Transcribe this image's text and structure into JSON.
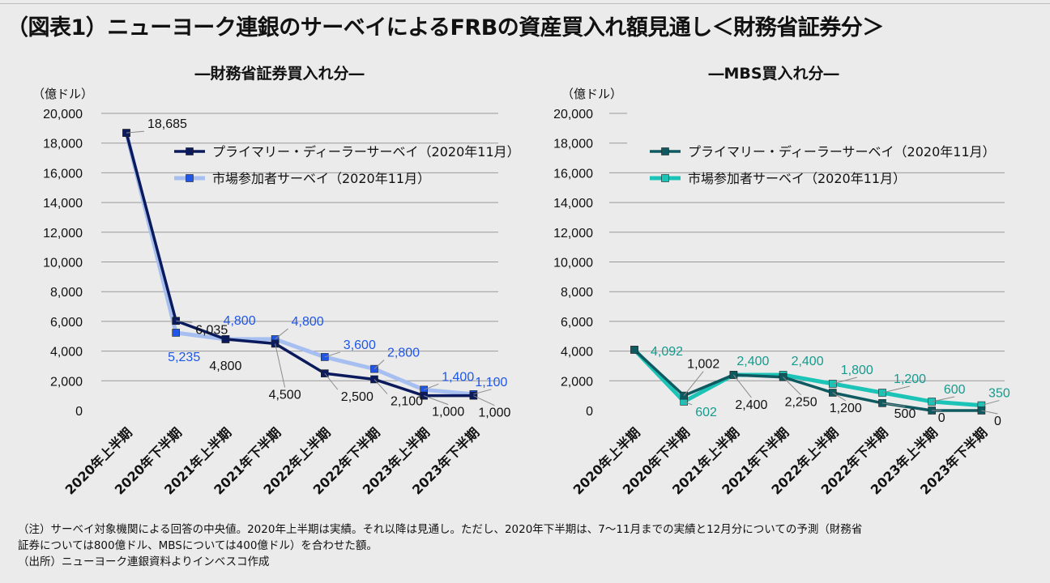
{
  "title": "（図表1）ニューヨーク連銀のサーベイによるFRBの資産買入れ額見通し＜財務省証券分＞",
  "colors": {
    "left_primary": "#0a1a5c",
    "left_market": "#a6bff0",
    "left_marker": "#1f56e8",
    "left_label": "#1f56e8",
    "right_primary": "#0f5a60",
    "right_market": "#1cc4b8",
    "right_label": "#169a8d"
  },
  "chart_data": [
    {
      "type": "line",
      "title": "―財務省証券買入れ分―",
      "ylabel": "（億ドル）",
      "ylim": [
        0,
        20000
      ],
      "yticks": [
        "0",
        "2,000",
        "4,000",
        "6,000",
        "8,000",
        "10,000",
        "12,000",
        "14,000",
        "16,000",
        "18,000",
        "20,000"
      ],
      "categories": [
        "2020年上半期",
        "2020年下半期",
        "2021年上半期",
        "2021年下半期",
        "2022年上半期",
        "2022年下半期",
        "2023年上半期",
        "2023年下半期"
      ],
      "legend": [
        "プライマリー・ディーラーサーベイ（2020年11月）",
        "市場参加者サーベイ（2020年11月）"
      ],
      "series": [
        {
          "name": "プライマリー・ディーラーサーベイ（2020年11月）",
          "values": [
            18685,
            6035,
            4800,
            4500,
            2500,
            2100,
            1000,
            1000
          ],
          "labels": [
            "18,685",
            "6,035",
            "4,800",
            "4,500",
            "2,500",
            "2,100",
            "1,000",
            "1,000"
          ]
        },
        {
          "name": "市場参加者サーベイ（2020年11月）",
          "values": [
            18685,
            5235,
            4800,
            4800,
            3600,
            2800,
            1400,
            1100
          ],
          "labels": [
            "",
            "5,235",
            "",
            "4,800",
            "3,600",
            "2,800",
            "1,400",
            "1,100"
          ],
          "extra_labels": [
            "4,800"
          ]
        }
      ]
    },
    {
      "type": "line",
      "title": "―MBS買入れ分―",
      "ylabel": "（億ドル）",
      "ylim": [
        0,
        20000
      ],
      "yticks": [
        "0",
        "2,000",
        "4,000",
        "6,000",
        "8,000",
        "10,000",
        "12,000",
        "14,000",
        "16,000",
        "18,000",
        "20,000"
      ],
      "categories": [
        "2020年上半期",
        "2020年下半期",
        "2021年上半期",
        "2021年下半期",
        "2022年上半期",
        "2022年下半期",
        "2023年上半期",
        "2023年下半期"
      ],
      "legend": [
        "プライマリー・ディーラーサーベイ（2020年11月）",
        "市場参加者サーベイ（2020年11月）"
      ],
      "series": [
        {
          "name": "プライマリー・ディーラーサーベイ（2020年11月）",
          "values": [
            4092,
            1002,
            2400,
            2250,
            1200,
            500,
            0,
            0
          ],
          "labels": [
            "",
            "1,002",
            "2,400",
            "2,250",
            "1,200",
            "500",
            "0",
            "0"
          ]
        },
        {
          "name": "市場参加者サーベイ（2020年11月）",
          "values": [
            4092,
            602,
            2400,
            2400,
            1800,
            1200,
            600,
            350
          ],
          "labels": [
            "4,092",
            "602",
            "2,400",
            "2,400",
            "1,800",
            "1,200",
            "600",
            "350"
          ]
        }
      ]
    }
  ],
  "footnotes": [
    "（注）サーベイ対象機関による回答の中央値。2020年上半期は実績。それ以降は見通し。ただし、2020年下半期は、7～11月までの実績と12月分についての予測（財務省",
    "証券については800億ドル、MBSについては400億ドル）を合わせた額。",
    "（出所）ニューヨーク連銀資料よりインベスコ作成"
  ]
}
